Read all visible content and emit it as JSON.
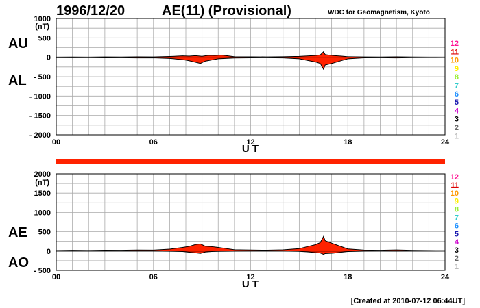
{
  "header": {
    "date": "1996/12/20",
    "title": "AE(11) (Provisional)",
    "source": "WDC for Geomagnetism, Kyoto"
  },
  "footer": {
    "created": "[Created at 2010-07-12 06:44UT]"
  },
  "station_legend": {
    "labels": [
      "12",
      "11",
      "10",
      "9",
      "8",
      "7",
      "6",
      "5",
      "4",
      "3",
      "2",
      "1"
    ],
    "colors": [
      "#ff1493",
      "#dd0000",
      "#ff9900",
      "#ffee00",
      "#99ee33",
      "#33cccc",
      "#1e90ff",
      "#1a1ab0",
      "#cc00cc",
      "#000000",
      "#666666",
      "#bbbbbb"
    ]
  },
  "activity_bar": {
    "color": "#ff2200"
  },
  "chart_data": [
    {
      "id": "au-al",
      "type": "area",
      "series_labels": [
        "AU",
        "AL"
      ],
      "unit": "(nT)",
      "xlabel": "U T",
      "ylim": [
        -2000,
        1000
      ],
      "yticks": [
        1000,
        500,
        0,
        -500,
        -1000,
        -1500,
        -2000
      ],
      "ytick_labels": [
        "1000",
        "500",
        "0",
        "- 500",
        "- 1000",
        "- 1500",
        "- 2000"
      ],
      "xlim": [
        0,
        24
      ],
      "xticks": [
        0,
        6,
        12,
        18,
        24
      ],
      "xtick_labels": [
        "00",
        "06",
        "12",
        "18",
        "24"
      ],
      "x_minor_step": 1,
      "y_minor_step": 250,
      "fill_color": "#ff2200",
      "upper": {
        "name": "AU",
        "points": [
          [
            0,
            5
          ],
          [
            1,
            8
          ],
          [
            2,
            6
          ],
          [
            3,
            10
          ],
          [
            4,
            8
          ],
          [
            5,
            12
          ],
          [
            6,
            10
          ],
          [
            7,
            20
          ],
          [
            7.8,
            35
          ],
          [
            8.2,
            30
          ],
          [
            8.6,
            40
          ],
          [
            9.0,
            25
          ],
          [
            9.4,
            50
          ],
          [
            9.8,
            45
          ],
          [
            10.2,
            55
          ],
          [
            10.6,
            35
          ],
          [
            11,
            15
          ],
          [
            12,
            12
          ],
          [
            13,
            10
          ],
          [
            14,
            14
          ],
          [
            15,
            22
          ],
          [
            15.6,
            35
          ],
          [
            16.0,
            45
          ],
          [
            16.3,
            60
          ],
          [
            16.5,
            140
          ],
          [
            16.6,
            70
          ],
          [
            16.8,
            55
          ],
          [
            17.2,
            40
          ],
          [
            17.6,
            30
          ],
          [
            18,
            15
          ],
          [
            19,
            10
          ],
          [
            20,
            8
          ],
          [
            21,
            12
          ],
          [
            22,
            8
          ],
          [
            23,
            6
          ],
          [
            24,
            5
          ]
        ]
      },
      "lower": {
        "name": "AL",
        "points": [
          [
            0,
            -10
          ],
          [
            1,
            -12
          ],
          [
            2,
            -10
          ],
          [
            3,
            -14
          ],
          [
            4,
            -12
          ],
          [
            5,
            -16
          ],
          [
            6,
            -15
          ],
          [
            7,
            -30
          ],
          [
            7.8,
            -60
          ],
          [
            8.2,
            -90
          ],
          [
            8.6,
            -130
          ],
          [
            8.9,
            -160
          ],
          [
            9.2,
            -100
          ],
          [
            9.6,
            -70
          ],
          [
            10,
            -40
          ],
          [
            11,
            -20
          ],
          [
            12,
            -15
          ],
          [
            13,
            -12
          ],
          [
            14,
            -18
          ],
          [
            15,
            -40
          ],
          [
            15.5,
            -80
          ],
          [
            16.0,
            -120
          ],
          [
            16.3,
            -160
          ],
          [
            16.5,
            -310
          ],
          [
            16.6,
            -200
          ],
          [
            16.8,
            -180
          ],
          [
            17.1,
            -150
          ],
          [
            17.5,
            -100
          ],
          [
            18,
            -40
          ],
          [
            19,
            -15
          ],
          [
            20,
            -12
          ],
          [
            21,
            -18
          ],
          [
            22,
            -10
          ],
          [
            23,
            -8
          ],
          [
            24,
            -6
          ]
        ]
      }
    },
    {
      "id": "ae-ao",
      "type": "area",
      "series_labels": [
        "AE",
        "AO"
      ],
      "unit": "(nT)",
      "xlabel": "U T",
      "ylim": [
        -500,
        2000
      ],
      "yticks": [
        2000,
        1500,
        1000,
        500,
        0,
        -500
      ],
      "ytick_labels": [
        "2000",
        "1500",
        "1000",
        "500",
        "0",
        "- 500"
      ],
      "xlim": [
        0,
        24
      ],
      "xticks": [
        0,
        6,
        12,
        18,
        24
      ],
      "xtick_labels": [
        "00",
        "06",
        "12",
        "18",
        "24"
      ],
      "x_minor_step": 1,
      "y_minor_step": 250,
      "fill_color": "#ff2200",
      "upper": {
        "name": "AE",
        "points": [
          [
            0,
            15
          ],
          [
            1,
            20
          ],
          [
            2,
            16
          ],
          [
            3,
            24
          ],
          [
            4,
            20
          ],
          [
            5,
            28
          ],
          [
            6,
            25
          ],
          [
            7,
            50
          ],
          [
            7.8,
            95
          ],
          [
            8.2,
            120
          ],
          [
            8.6,
            170
          ],
          [
            8.9,
            185
          ],
          [
            9.2,
            125
          ],
          [
            9.6,
            115
          ],
          [
            10,
            95
          ],
          [
            11,
            35
          ],
          [
            12,
            27
          ],
          [
            13,
            22
          ],
          [
            14,
            32
          ],
          [
            15,
            62
          ],
          [
            15.5,
            115
          ],
          [
            16.0,
            165
          ],
          [
            16.3,
            220
          ],
          [
            16.5,
            380
          ],
          [
            16.6,
            270
          ],
          [
            16.8,
            235
          ],
          [
            17.1,
            190
          ],
          [
            17.5,
            130
          ],
          [
            18,
            55
          ],
          [
            19,
            25
          ],
          [
            20,
            20
          ],
          [
            21,
            30
          ],
          [
            22,
            18
          ],
          [
            23,
            14
          ],
          [
            24,
            11
          ]
        ]
      },
      "lower": {
        "name": "AO",
        "points": [
          [
            0,
            -2
          ],
          [
            1,
            -2
          ],
          [
            2,
            -2
          ],
          [
            3,
            -2
          ],
          [
            4,
            -2
          ],
          [
            5,
            -2
          ],
          [
            6,
            -2
          ],
          [
            7,
            -5
          ],
          [
            7.8,
            -12
          ],
          [
            8.2,
            -30
          ],
          [
            8.6,
            -45
          ],
          [
            8.9,
            -60
          ],
          [
            9.2,
            -25
          ],
          [
            9.6,
            -12
          ],
          [
            10,
            -8
          ],
          [
            11,
            -3
          ],
          [
            12,
            -2
          ],
          [
            13,
            -1
          ],
          [
            14,
            -2
          ],
          [
            15,
            -9
          ],
          [
            15.5,
            -22
          ],
          [
            16.0,
            -38
          ],
          [
            16.3,
            -50
          ],
          [
            16.5,
            -85
          ],
          [
            16.6,
            -65
          ],
          [
            16.8,
            -62
          ],
          [
            17.1,
            -55
          ],
          [
            17.5,
            -35
          ],
          [
            18,
            -12
          ],
          [
            19,
            -3
          ],
          [
            20,
            -2
          ],
          [
            21,
            -3
          ],
          [
            22,
            -1
          ],
          [
            23,
            -1
          ],
          [
            24,
            0
          ]
        ]
      }
    }
  ]
}
